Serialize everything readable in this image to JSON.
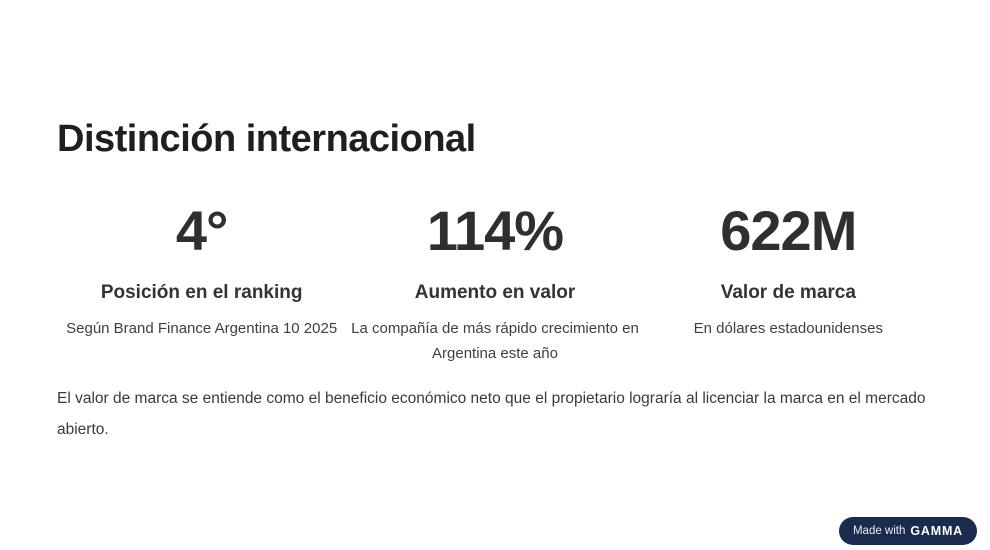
{
  "page": {
    "background": "#ffffff",
    "title": "Distinción internacional"
  },
  "stats": [
    {
      "value": "4°",
      "label": "Posición en el ranking",
      "description": "Según Brand Finance Argentina 10 2025"
    },
    {
      "value": "114%",
      "label": "Aumento en valor",
      "description": "La compañía de más rápido crecimiento en Argentina este año"
    },
    {
      "value": "622M",
      "label": "Valor de marca",
      "description": "En dólares estadounidenses"
    }
  ],
  "footnote": "El valor de marca se entiende como el beneficio económico neto que el propietario lograría al licenciar la marca en el mercado abierto.",
  "badge": {
    "prefix": "Made with",
    "brand": "GAMMA",
    "background": "#1b2b4e",
    "text_color": "#ffffff"
  },
  "colors": {
    "title_text": "#1f1f1f",
    "stat_value_text": "#2f2f2f",
    "stat_label_text": "#333333",
    "body_text": "#3a3a3a"
  }
}
